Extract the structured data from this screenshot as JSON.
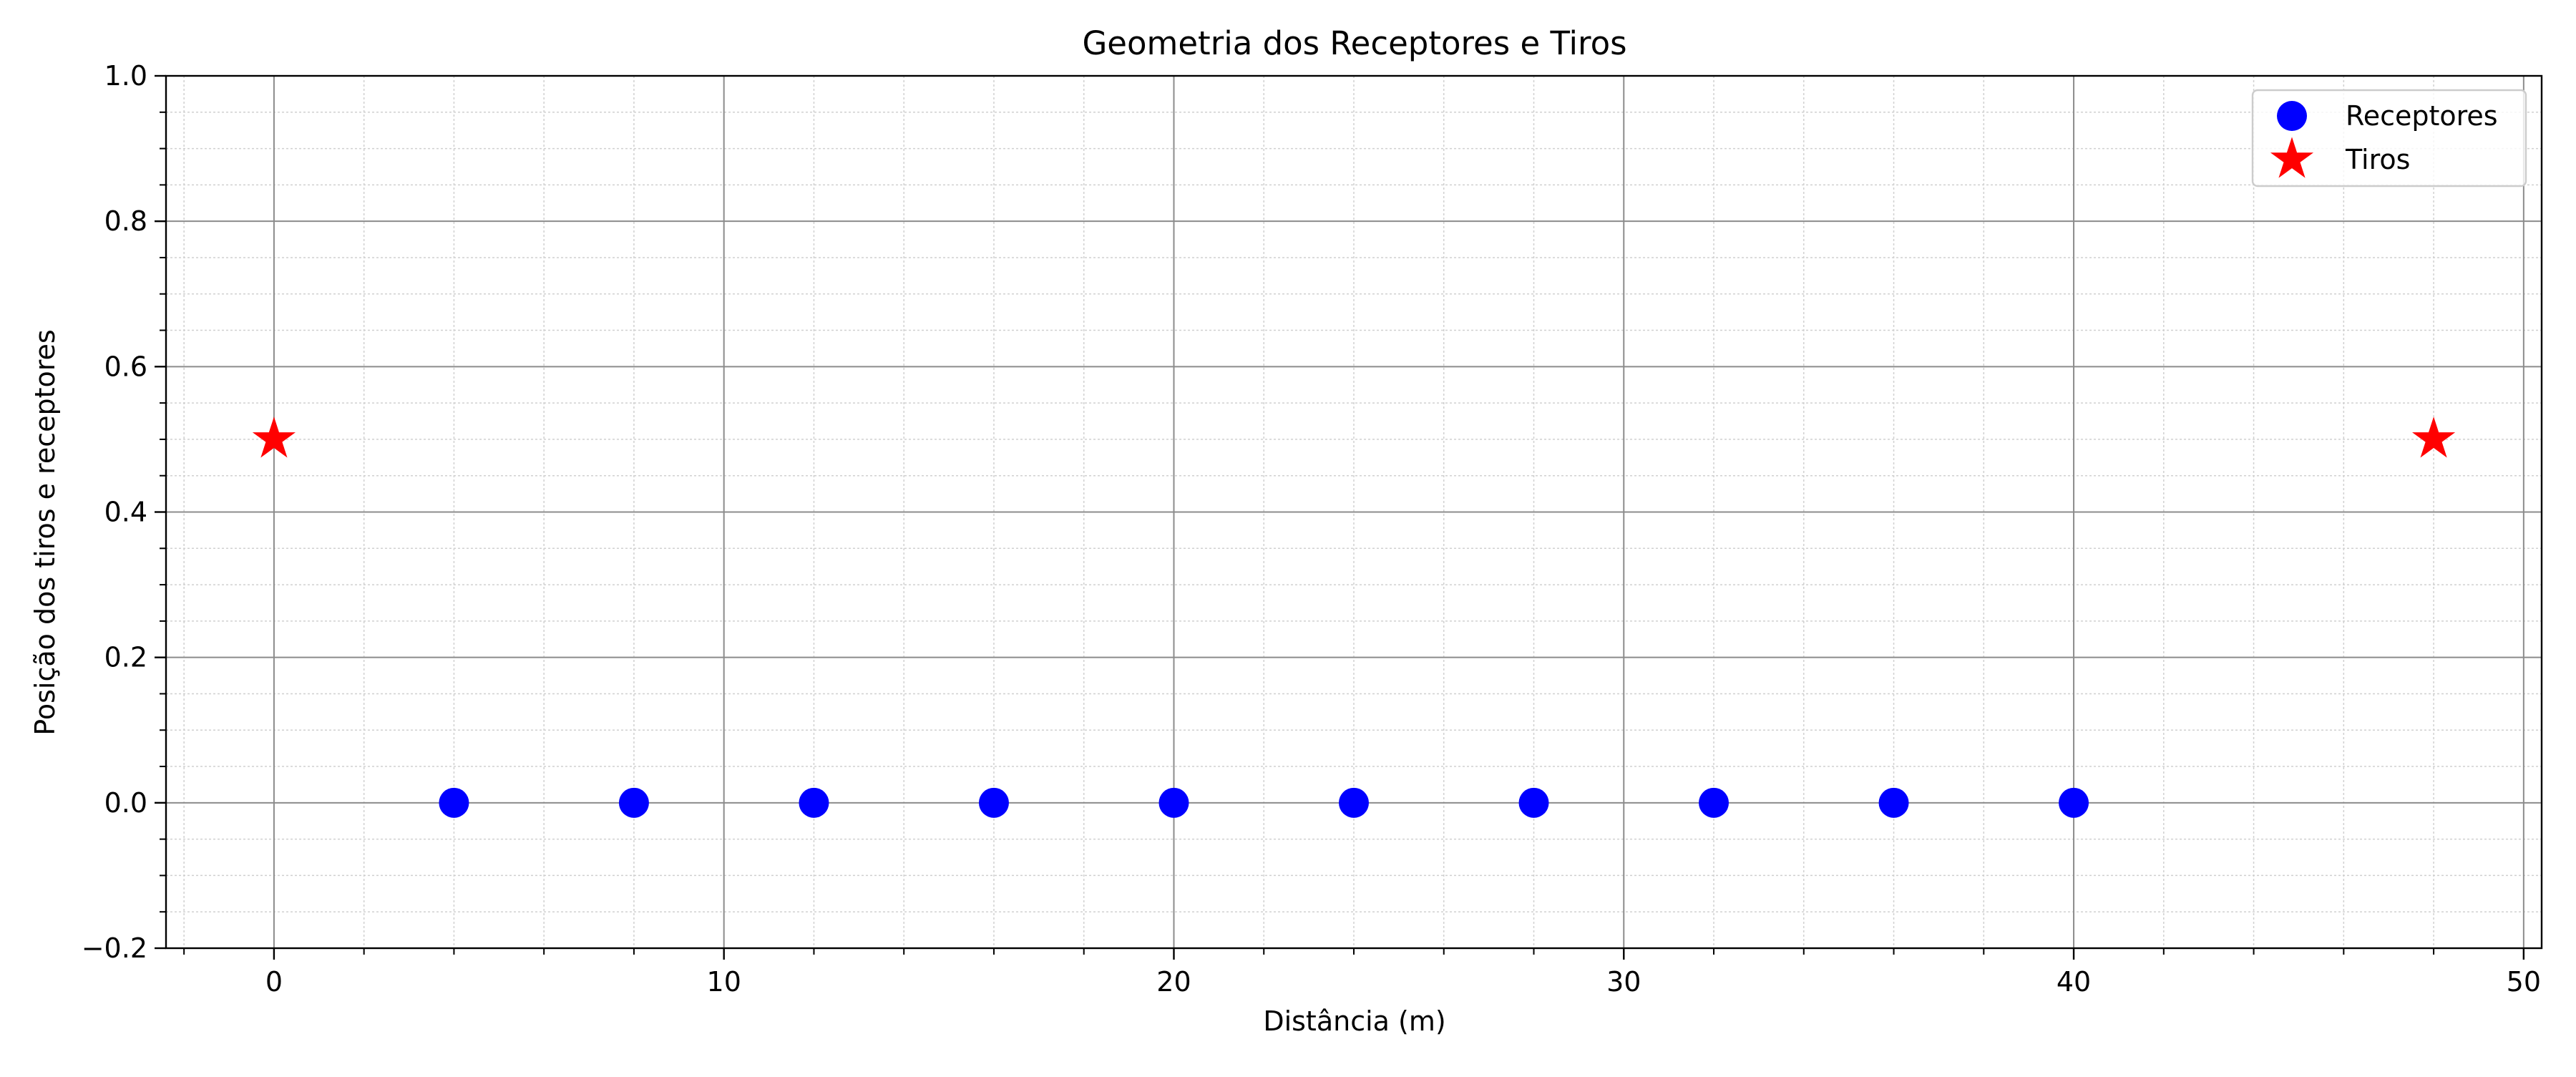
{
  "chart_data": {
    "type": "scatter",
    "title": "Geometria dos Receptores e Tiros",
    "xlabel": "Distância (m)",
    "ylabel": "Posição dos tiros e receptores",
    "xlim": [
      -2.4,
      50.4
    ],
    "ylim": [
      -0.2,
      1.0
    ],
    "x_ticks": [
      0,
      10,
      20,
      30,
      40,
      50
    ],
    "x_tick_labels": [
      "0",
      "10",
      "20",
      "30",
      "40",
      "50"
    ],
    "y_ticks": [
      -0.2,
      0.0,
      0.2,
      0.4,
      0.6,
      0.8,
      1.0
    ],
    "y_tick_labels": [
      "−0.2",
      "0.0",
      "0.2",
      "0.4",
      "0.6",
      "0.8",
      "1.0"
    ],
    "x_minor_step": 2,
    "y_minor_step": 0.05,
    "grid": {
      "major": true,
      "minor": true
    },
    "legend_position": "top-right",
    "series": [
      {
        "name": "Receptores",
        "marker": "circle",
        "color": "#0000ff",
        "points": [
          {
            "x": 4,
            "y": 0.0
          },
          {
            "x": 8,
            "y": 0.0
          },
          {
            "x": 12,
            "y": 0.0
          },
          {
            "x": 16,
            "y": 0.0
          },
          {
            "x": 20,
            "y": 0.0
          },
          {
            "x": 24,
            "y": 0.0
          },
          {
            "x": 28,
            "y": 0.0
          },
          {
            "x": 32,
            "y": 0.0
          },
          {
            "x": 36,
            "y": 0.0
          },
          {
            "x": 40,
            "y": 0.0
          }
        ]
      },
      {
        "name": "Tiros",
        "marker": "star",
        "color": "#ff0000",
        "points": [
          {
            "x": 0,
            "y": 0.5
          },
          {
            "x": 48,
            "y": 0.5
          }
        ]
      }
    ]
  }
}
